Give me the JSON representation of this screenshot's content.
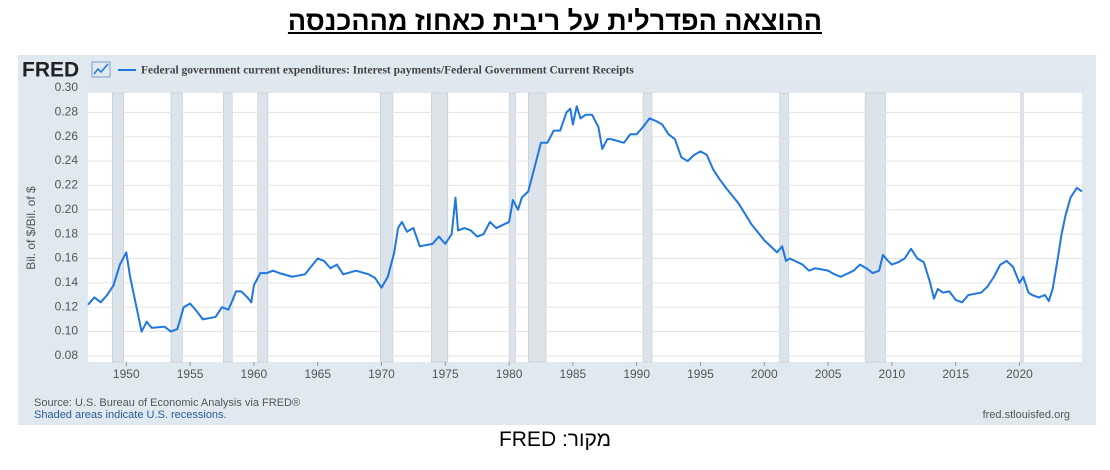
{
  "title": "ההוצאה הפדרלית על ריבית כאחוז מההכנסה",
  "caption": "מקור: FRED",
  "chart_data": {
    "type": "line",
    "logo": "FRED",
    "ylabel": "Bil. of $/Bil. of $",
    "source": "Source: U.S. Bureau of Economic Analysis via FRED®",
    "note": "Shaded areas indicate U.S. recessions.",
    "site": "fred.stlouisfed.org",
    "xlim": [
      1947,
      2024.9
    ],
    "ylim": [
      0.075,
      0.3
    ],
    "xticks": [
      1950,
      1955,
      1960,
      1965,
      1970,
      1975,
      1980,
      1985,
      1990,
      1995,
      2000,
      2005,
      2010,
      2015,
      2020
    ],
    "yticks": [
      0.08,
      {
        "value": 0.1,
        "label": "0.10"
      },
      0.12,
      0.14,
      0.16,
      0.18,
      {
        "value": 0.2,
        "label": "0.20"
      },
      0.22,
      0.24,
      0.26,
      0.28,
      {
        "value": 0.3,
        "label": "0.30"
      }
    ],
    "grid": true,
    "recessions": [
      [
        1948.9,
        1949.8
      ],
      [
        1953.5,
        1954.4
      ],
      [
        1957.6,
        1958.3
      ],
      [
        1960.3,
        1961.1
      ],
      [
        1969.9,
        1970.9
      ],
      [
        1973.9,
        1975.2
      ],
      [
        1980.0,
        1980.5
      ],
      [
        1981.5,
        1982.9
      ],
      [
        1990.5,
        1991.2
      ],
      [
        2001.2,
        2001.9
      ],
      [
        2007.9,
        2009.5
      ],
      [
        2020.1,
        2020.3
      ]
    ],
    "series": [
      {
        "name": "Federal government current expenditures: Interest payments/Federal Government Current Receipts",
        "color": "#1f77e0",
        "x": [
          1947,
          1947.5,
          1948,
          1948.5,
          1949,
          1949.5,
          1950,
          1950.3,
          1950.8,
          1951.2,
          1951.6,
          1952,
          1953,
          1953.5,
          1954,
          1954.5,
          1955,
          1955.5,
          1956,
          1957,
          1957.5,
          1958,
          1958.3,
          1958.6,
          1959,
          1959.5,
          1959.8,
          1960,
          1960.5,
          1961,
          1961.5,
          1962,
          1963,
          1964,
          1965,
          1965.5,
          1966,
          1966.5,
          1967,
          1968,
          1969,
          1969.5,
          1970,
          1970.5,
          1971,
          1971.3,
          1971.6,
          1972,
          1972.5,
          1973,
          1974,
          1974.5,
          1975,
          1975.5,
          1975.8,
          1976,
          1976.5,
          1977,
          1977.5,
          1978,
          1978.5,
          1979,
          1980,
          1980.3,
          1980.7,
          1981,
          1981.5,
          1982,
          1982.5,
          1983,
          1983.5,
          1984,
          1984.5,
          1984.8,
          1985,
          1985.3,
          1985.6,
          1986,
          1986.5,
          1987,
          1987.3,
          1987.7,
          1988,
          1989,
          1989.5,
          1990,
          1990.5,
          1991,
          1991.5,
          1992,
          1992.5,
          1993,
          1993.5,
          1994,
          1994.5,
          1995,
          1995.5,
          1996,
          1996.5,
          1997,
          1998,
          1999,
          2000,
          2001,
          2001.4,
          2001.7,
          2002,
          2003,
          2003.5,
          2004,
          2005,
          2005.5,
          2006,
          2007,
          2007.5,
          2008,
          2008.5,
          2009,
          2009.3,
          2009.7,
          2010,
          2010.5,
          2011,
          2011.5,
          2012,
          2012.5,
          2013,
          2013.3,
          2013.6,
          2014,
          2014.5,
          2015,
          2015.5,
          2016,
          2016.5,
          2017,
          2017.5,
          2018,
          2018.5,
          2019,
          2019.5,
          2020,
          2020.3,
          2020.7,
          2021,
          2021.5,
          2022,
          2022.3,
          2022.6,
          2023,
          2023.3,
          2023.6,
          2024,
          2024.5,
          2024.9
        ],
        "values": [
          0.122,
          0.128,
          0.124,
          0.13,
          0.138,
          0.155,
          0.165,
          0.145,
          0.12,
          0.1,
          0.108,
          0.103,
          0.104,
          0.1,
          0.102,
          0.12,
          0.123,
          0.117,
          0.11,
          0.112,
          0.12,
          0.118,
          0.125,
          0.133,
          0.133,
          0.128,
          0.124,
          0.138,
          0.148,
          0.148,
          0.15,
          0.148,
          0.145,
          0.147,
          0.16,
          0.158,
          0.152,
          0.155,
          0.147,
          0.15,
          0.147,
          0.144,
          0.136,
          0.145,
          0.165,
          0.185,
          0.19,
          0.182,
          0.185,
          0.17,
          0.172,
          0.178,
          0.172,
          0.18,
          0.21,
          0.183,
          0.185,
          0.183,
          0.178,
          0.18,
          0.19,
          0.185,
          0.19,
          0.208,
          0.2,
          0.21,
          0.215,
          0.235,
          0.255,
          0.255,
          0.265,
          0.265,
          0.28,
          0.283,
          0.27,
          0.285,
          0.275,
          0.278,
          0.278,
          0.268,
          0.25,
          0.258,
          0.258,
          0.255,
          0.262,
          0.262,
          0.268,
          0.275,
          0.273,
          0.27,
          0.262,
          0.258,
          0.243,
          0.24,
          0.245,
          0.248,
          0.245,
          0.233,
          0.225,
          0.218,
          0.205,
          0.188,
          0.175,
          0.165,
          0.17,
          0.158,
          0.16,
          0.155,
          0.15,
          0.152,
          0.15,
          0.147,
          0.145,
          0.15,
          0.155,
          0.152,
          0.148,
          0.15,
          0.163,
          0.158,
          0.155,
          0.157,
          0.16,
          0.168,
          0.16,
          0.157,
          0.14,
          0.127,
          0.135,
          0.132,
          0.133,
          0.126,
          0.124,
          0.13,
          0.131,
          0.132,
          0.137,
          0.145,
          0.155,
          0.158,
          0.153,
          0.14,
          0.145,
          0.132,
          0.13,
          0.128,
          0.13,
          0.125,
          0.135,
          0.16,
          0.18,
          0.195,
          0.21,
          0.218,
          0.215
        ]
      }
    ]
  }
}
